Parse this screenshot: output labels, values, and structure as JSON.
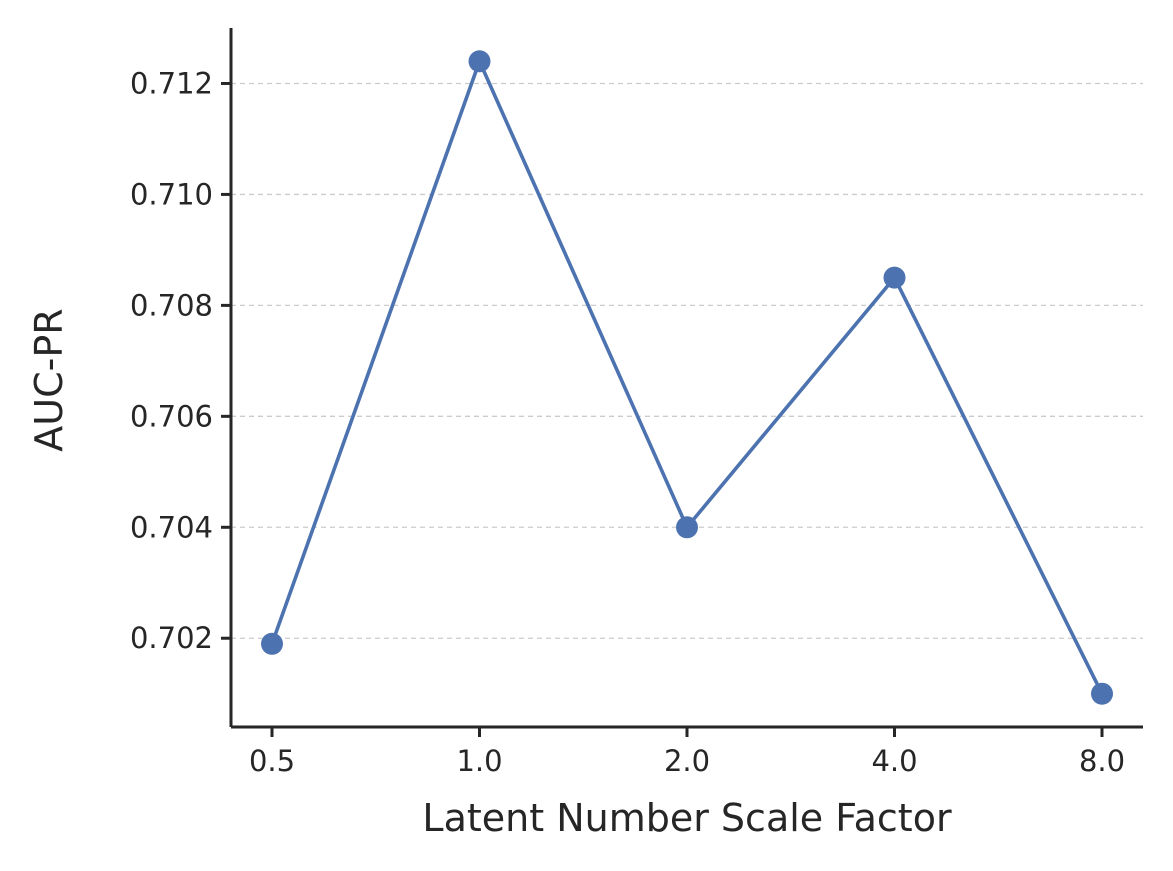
{
  "chart_data": {
    "type": "line",
    "categories": [
      "0.5",
      "1.0",
      "2.0",
      "4.0",
      "8.0"
    ],
    "series": [
      {
        "values": [
          0.7019,
          0.7124,
          0.704,
          0.7085,
          0.701
        ]
      }
    ],
    "xlabel": "Latent Number Scale Factor",
    "ylabel": "AUC-PR",
    "ylim": [
      0.7004,
      0.713
    ],
    "yticks": [
      0.702,
      0.704,
      0.706,
      0.708,
      0.71,
      0.712
    ],
    "ytick_labels": [
      "0.702",
      "0.704",
      "0.706",
      "0.708",
      "0.710",
      "0.712"
    ],
    "grid": "y-dashed",
    "legend": "none",
    "colors": {
      "line": "#4c72b0",
      "axis": "#262626",
      "grid": "#cccccc"
    }
  }
}
